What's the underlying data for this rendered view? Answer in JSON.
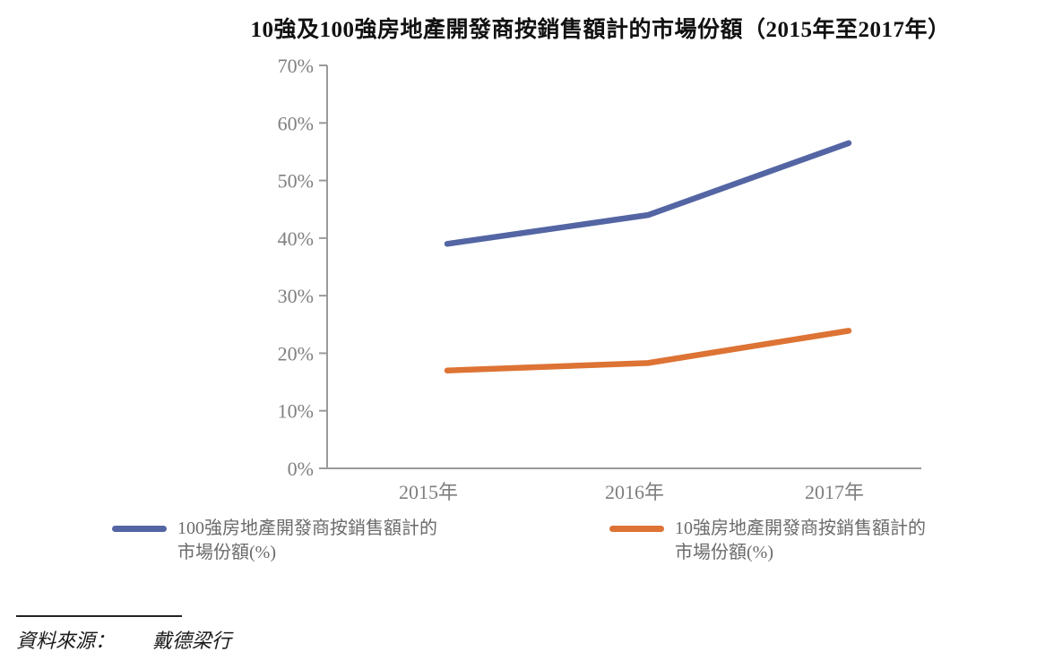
{
  "title": "10強及100強房地產開發商按銷售額計的市場份額（2015年至2017年）",
  "source": {
    "label": "資料來源：",
    "value": "戴德梁行"
  },
  "colors": {
    "series1": "#5465A4",
    "series2": "#DD7334",
    "axis_line": "#9a9a9a",
    "axis_label": "#7f7f7f",
    "legend_text": "#6b6b6b",
    "title_text": "#111111"
  },
  "chart_data": {
    "type": "line",
    "title": "10強及100強房地產開發商按銷售額計的市場份額（2015年至2017年）",
    "categories": [
      "2015年",
      "2016年",
      "2017年"
    ],
    "series": [
      {
        "name": "100強房地產開發商按銷售額計的市場份額(%)",
        "legend_lines": [
          "100強房地產開發商按銷售額計的",
          "市場份額(%)"
        ],
        "color": "#5465A4",
        "values": [
          39,
          44,
          56.5
        ]
      },
      {
        "name": "10強房地產開發商按銷售額計的市場份額(%)",
        "legend_lines": [
          "10強房地產開發商按銷售額計的",
          "市場份額(%)"
        ],
        "color": "#DD7334",
        "values": [
          17,
          18.3,
          23.9
        ]
      }
    ],
    "xlabel": "",
    "ylabel": "",
    "ylim": [
      0,
      70
    ],
    "ytick_step": 10,
    "ytick_labels": [
      "0%",
      "10%",
      "20%",
      "30%",
      "40%",
      "50%",
      "60%",
      "70%"
    ],
    "grid": false,
    "legend_position": "bottom"
  }
}
